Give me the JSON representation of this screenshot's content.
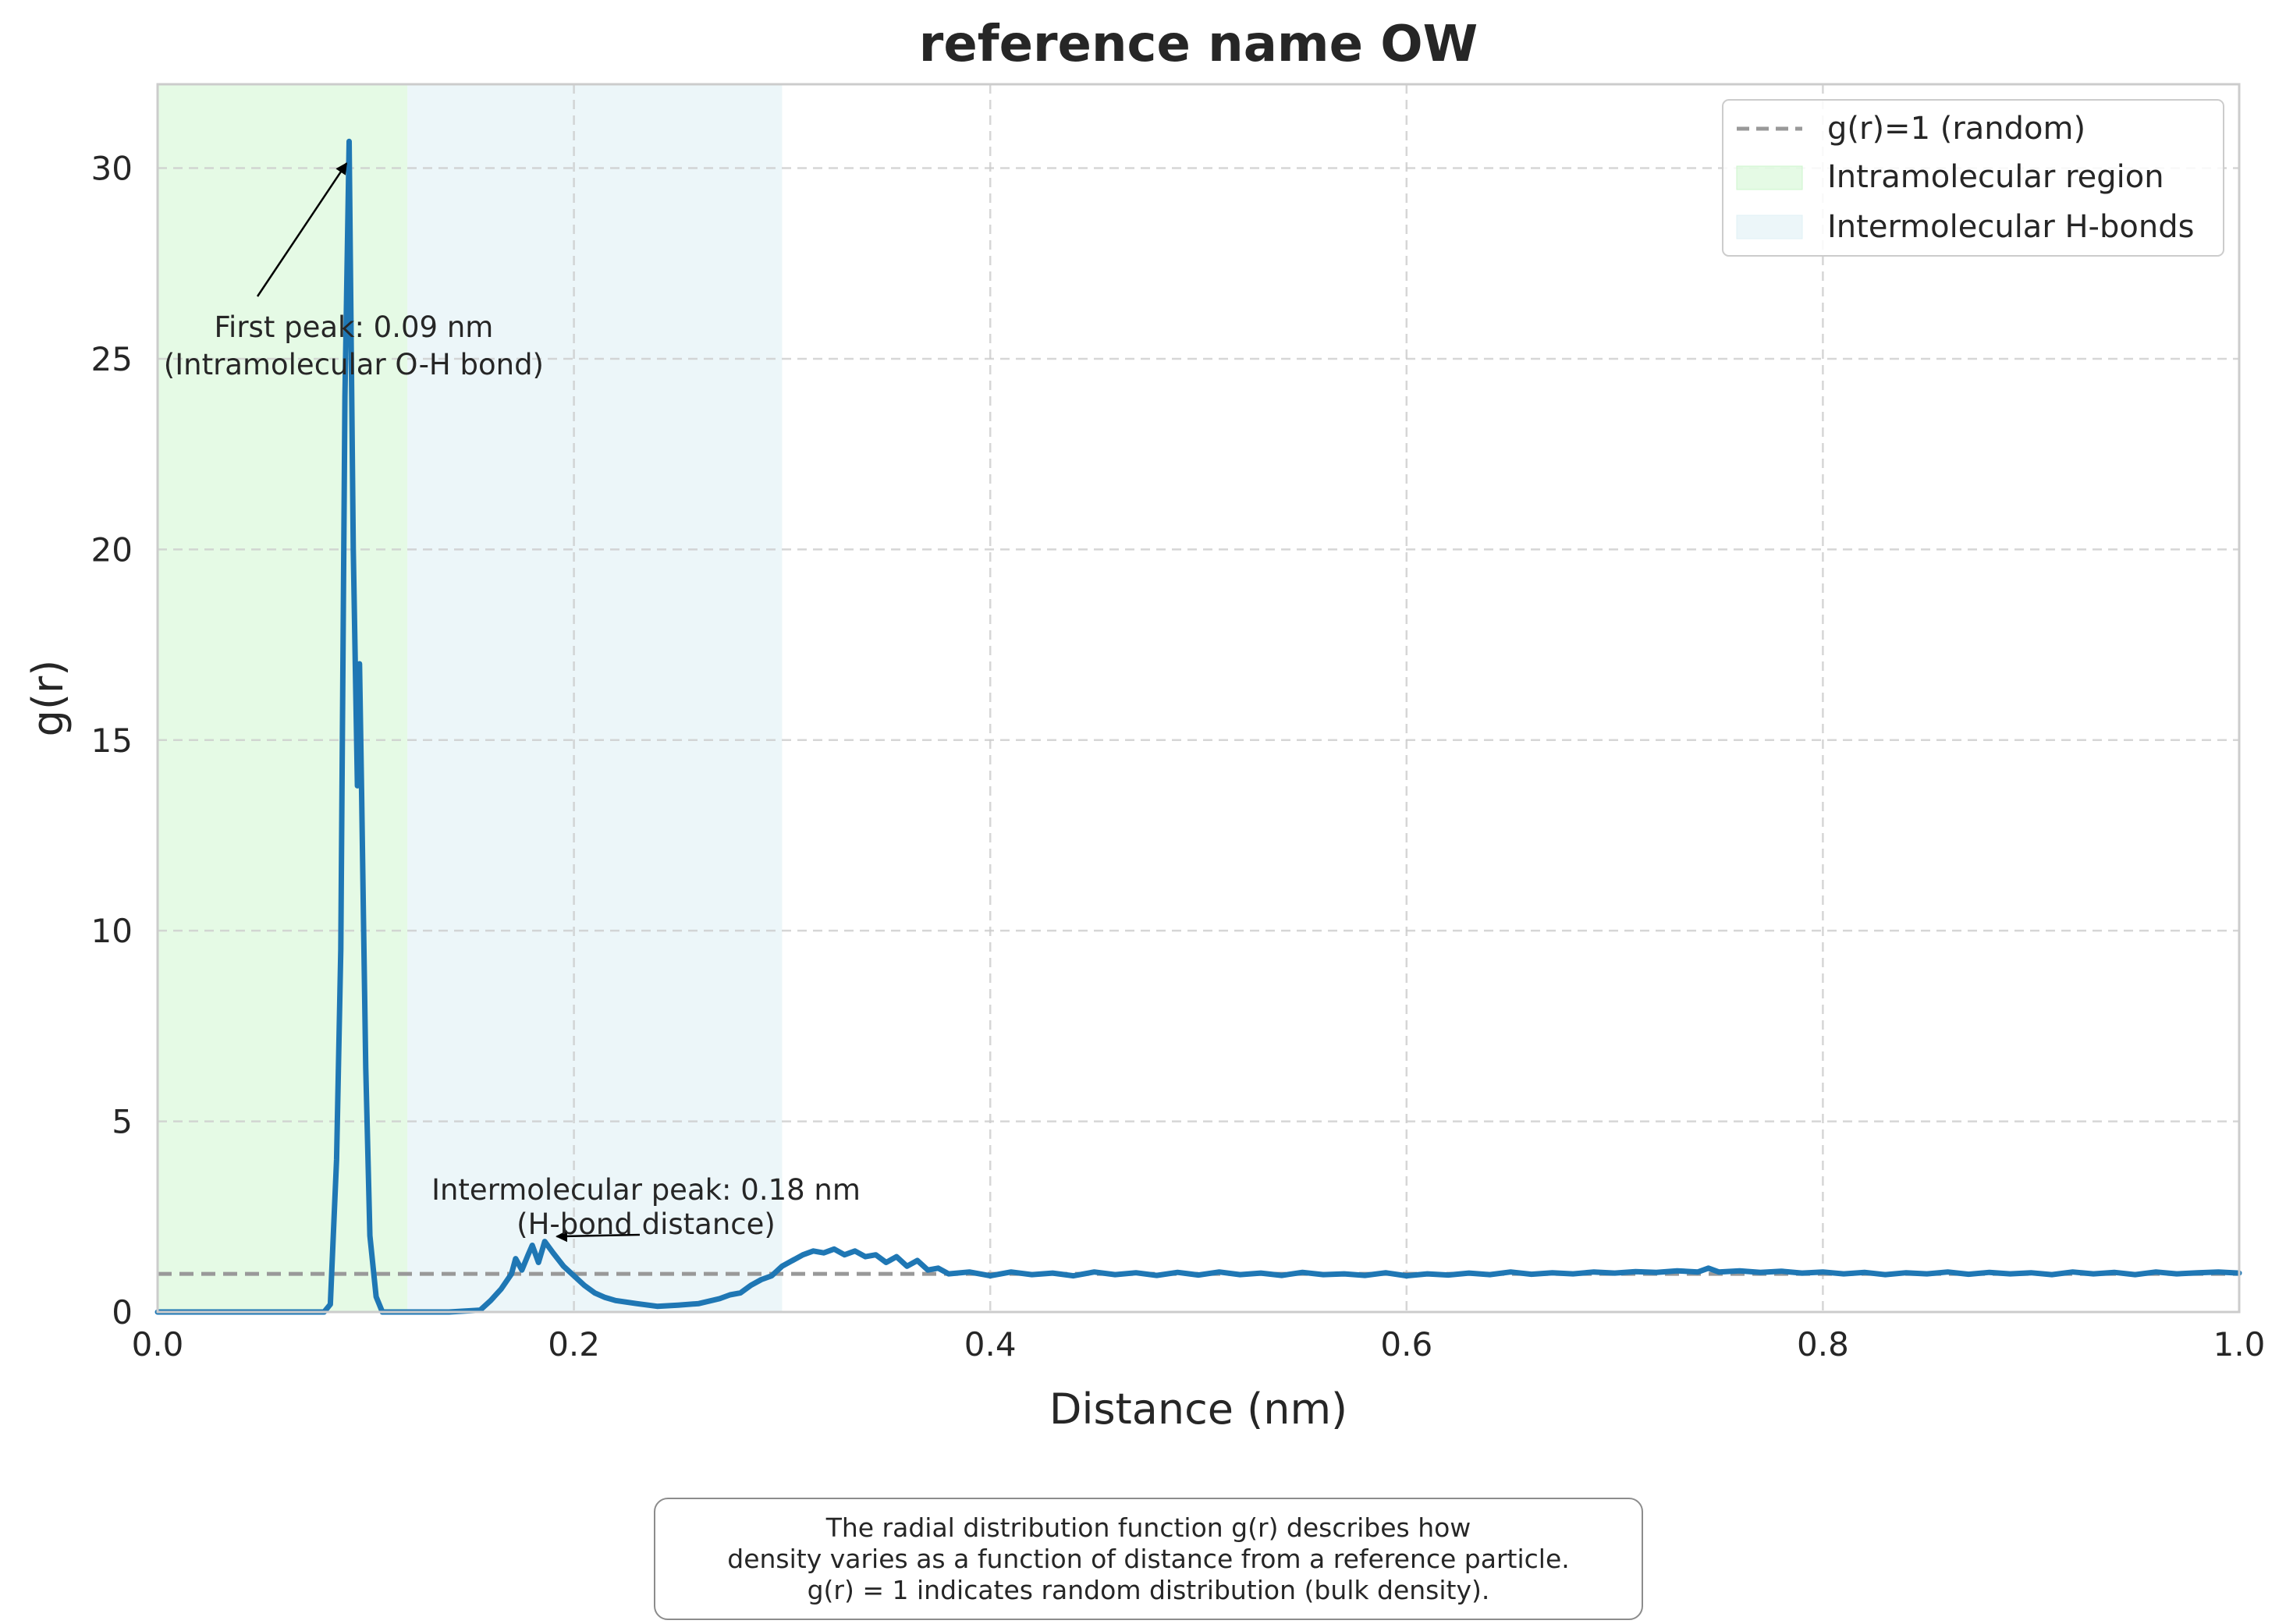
{
  "chart_data": {
    "type": "line",
    "title": "reference name OW",
    "xlabel": "Distance (nm)",
    "ylabel": "g(r)",
    "xlim": [
      0.0,
      1.0
    ],
    "ylim": [
      0,
      32.2
    ],
    "xticks": [
      0.0,
      0.2,
      0.4,
      0.6,
      0.8,
      1.0
    ],
    "xtick_labels": [
      "0.0",
      "0.2",
      "0.4",
      "0.6",
      "0.8",
      "1.0"
    ],
    "yticks": [
      0,
      5,
      10,
      15,
      20,
      25,
      30
    ],
    "ytick_labels": [
      "0",
      "5",
      "10",
      "15",
      "20",
      "25",
      "30"
    ],
    "grid": true,
    "legend_position": "top-right",
    "series": [
      {
        "name": "",
        "color": "#1f77b4",
        "x": [
          0.0,
          0.05,
          0.08,
          0.083,
          0.086,
          0.088,
          0.09,
          0.092,
          0.094,
          0.096,
          0.097,
          0.098,
          0.099,
          0.1,
          0.102,
          0.105,
          0.108,
          0.112,
          0.12,
          0.14,
          0.155,
          0.16,
          0.165,
          0.17,
          0.172,
          0.175,
          0.178,
          0.18,
          0.183,
          0.186,
          0.19,
          0.195,
          0.2,
          0.205,
          0.21,
          0.215,
          0.22,
          0.23,
          0.24,
          0.25,
          0.26,
          0.27,
          0.275,
          0.28,
          0.285,
          0.29,
          0.295,
          0.3,
          0.305,
          0.31,
          0.315,
          0.32,
          0.325,
          0.33,
          0.335,
          0.34,
          0.345,
          0.35,
          0.355,
          0.36,
          0.365,
          0.37,
          0.375,
          0.38,
          0.39,
          0.4,
          0.41,
          0.42,
          0.43,
          0.44,
          0.45,
          0.46,
          0.47,
          0.48,
          0.49,
          0.5,
          0.51,
          0.52,
          0.53,
          0.54,
          0.55,
          0.56,
          0.57,
          0.58,
          0.59,
          0.6,
          0.61,
          0.62,
          0.63,
          0.64,
          0.65,
          0.66,
          0.67,
          0.68,
          0.69,
          0.7,
          0.71,
          0.72,
          0.73,
          0.74,
          0.745,
          0.75,
          0.76,
          0.77,
          0.78,
          0.79,
          0.8,
          0.81,
          0.82,
          0.83,
          0.84,
          0.85,
          0.86,
          0.87,
          0.88,
          0.89,
          0.9,
          0.91,
          0.92,
          0.93,
          0.94,
          0.95,
          0.96,
          0.97,
          0.98,
          0.99,
          1.0
        ],
        "y": [
          0.0,
          0.0,
          0.0,
          0.2,
          4.0,
          9.5,
          24.0,
          30.7,
          20.0,
          13.8,
          17.0,
          13.6,
          10.0,
          6.4,
          2.0,
          0.4,
          0.0,
          0.0,
          0.0,
          0.0,
          0.05,
          0.3,
          0.6,
          1.0,
          1.4,
          1.1,
          1.5,
          1.75,
          1.3,
          1.85,
          1.55,
          1.2,
          0.95,
          0.7,
          0.5,
          0.38,
          0.3,
          0.22,
          0.15,
          0.18,
          0.22,
          0.35,
          0.45,
          0.5,
          0.7,
          0.85,
          0.95,
          1.2,
          1.35,
          1.5,
          1.6,
          1.55,
          1.65,
          1.5,
          1.6,
          1.45,
          1.5,
          1.3,
          1.45,
          1.2,
          1.35,
          1.1,
          1.15,
          1.0,
          1.05,
          0.95,
          1.05,
          0.98,
          1.02,
          0.95,
          1.05,
          0.98,
          1.03,
          0.96,
          1.04,
          0.97,
          1.05,
          0.98,
          1.02,
          0.96,
          1.04,
          0.98,
          1.0,
          0.96,
          1.03,
          0.95,
          1.0,
          0.97,
          1.02,
          0.98,
          1.05,
          0.99,
          1.03,
          1.0,
          1.05,
          1.02,
          1.06,
          1.04,
          1.08,
          1.05,
          1.15,
          1.05,
          1.08,
          1.04,
          1.07,
          1.02,
          1.05,
          1.0,
          1.04,
          0.98,
          1.03,
          1.0,
          1.05,
          0.99,
          1.04,
          1.0,
          1.03,
          0.98,
          1.05,
          1.0,
          1.04,
          0.98,
          1.05,
          1.0,
          1.03,
          1.05,
          1.02
        ]
      }
    ],
    "reference_lines": [
      {
        "name": "g(r)=1 (random)",
        "y": 1.0,
        "style": "dashed",
        "color": "#999999"
      }
    ],
    "shaded_regions": [
      {
        "name": "Intramolecular region",
        "x0": 0.0,
        "x1": 0.12,
        "color": "#ccf5cc"
      },
      {
        "name": "Intermolecular H-bonds",
        "x0": 0.12,
        "x1": 0.3,
        "color": "#dff0f5"
      }
    ],
    "annotations": [
      {
        "lines": [
          "First peak: 0.09 nm",
          "(Intramolecular O-H bond)"
        ],
        "x": 0.093,
        "y": 30.7,
        "text_x": 0.044,
        "text_y": 25.9
      },
      {
        "lines": [
          "Intermolecular peak: 0.18 nm",
          "(H-bond distance)"
        ],
        "x": 0.188,
        "y": 1.9,
        "text_x": 0.234,
        "text_y": 2.35
      }
    ]
  },
  "caption": {
    "line1": "The radial distribution function g(r) describes how",
    "line2": "density varies as a function of distance from a reference particle.",
    "line3": "g(r) = 1 indicates random distribution (bulk density)."
  }
}
